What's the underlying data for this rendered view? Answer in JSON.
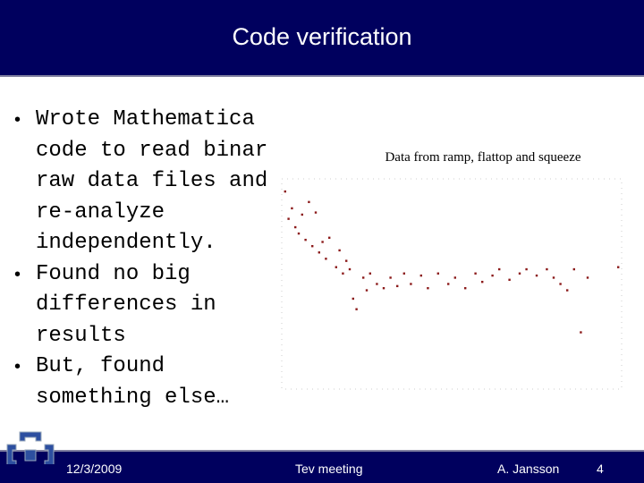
{
  "header": {
    "title": "Code verification"
  },
  "bullets": [
    "Wrote Mathematica code to read binary raw data files and re-analyze independently.",
    "Found no big differences in results",
    "But, found something else…"
  ],
  "chart_data": {
    "type": "scatter",
    "title": "Data from ramp, flattop and squeeze",
    "color": "#8b1a1a",
    "xlim": [
      0,
      1
    ],
    "ylim": [
      0,
      1
    ],
    "x": [
      0.01,
      0.02,
      0.03,
      0.04,
      0.05,
      0.06,
      0.07,
      0.08,
      0.09,
      0.1,
      0.11,
      0.12,
      0.13,
      0.14,
      0.16,
      0.17,
      0.18,
      0.19,
      0.2,
      0.21,
      0.22,
      0.24,
      0.25,
      0.26,
      0.28,
      0.3,
      0.32,
      0.34,
      0.36,
      0.38,
      0.41,
      0.43,
      0.46,
      0.49,
      0.51,
      0.54,
      0.57,
      0.59,
      0.62,
      0.64,
      0.67,
      0.7,
      0.72,
      0.75,
      0.78,
      0.8,
      0.82,
      0.84,
      0.86,
      0.88,
      0.9,
      0.99
    ],
    "values": [
      0.94,
      0.81,
      0.86,
      0.77,
      0.74,
      0.83,
      0.71,
      0.89,
      0.68,
      0.84,
      0.65,
      0.7,
      0.62,
      0.72,
      0.58,
      0.66,
      0.55,
      0.61,
      0.57,
      0.43,
      0.38,
      0.53,
      0.47,
      0.55,
      0.5,
      0.48,
      0.53,
      0.49,
      0.55,
      0.5,
      0.54,
      0.48,
      0.55,
      0.5,
      0.53,
      0.48,
      0.55,
      0.51,
      0.54,
      0.57,
      0.52,
      0.55,
      0.57,
      0.54,
      0.57,
      0.53,
      0.5,
      0.47,
      0.57,
      0.27,
      0.53,
      0.58
    ]
  },
  "footer": {
    "date": "12/3/2009",
    "event": "Tev meeting",
    "author": "A. Jansson",
    "page": "4"
  }
}
